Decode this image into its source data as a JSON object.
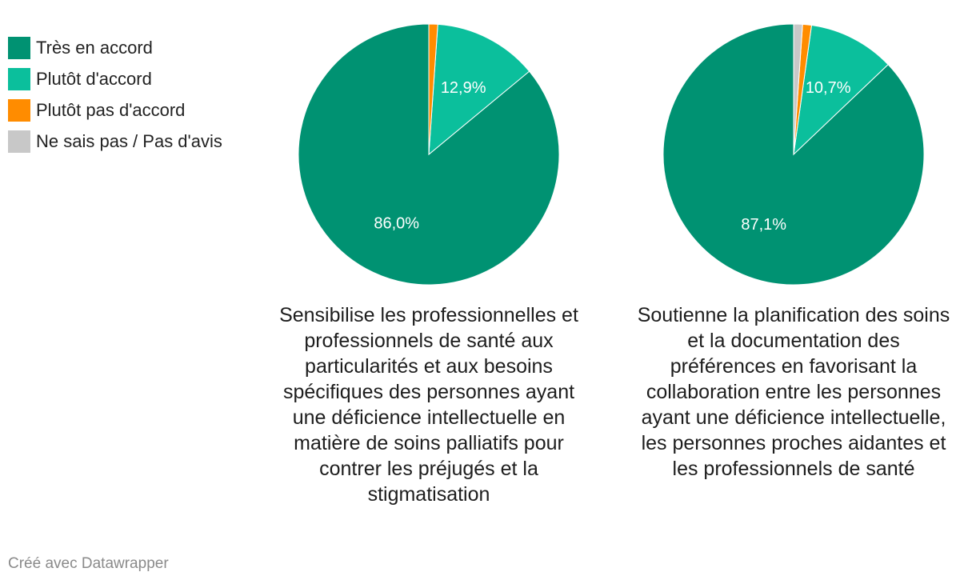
{
  "legend": [
    {
      "label": "Très en accord",
      "color": "#009272"
    },
    {
      "label": "Plutôt d'accord",
      "color": "#0bbf9c"
    },
    {
      "label": "Plutôt pas d'accord",
      "color": "#ff8c00"
    },
    {
      "label": "Ne sais pas / Pas d'avis",
      "color": "#c8c8c8"
    }
  ],
  "chart_data": [
    {
      "type": "pie",
      "title": "Sensibilise les professionnelles et professionnels de santé aux particularités et aux besoins spécifiques des personnes ayant une déficience intellectuelle en matière de soins palliatifs pour contrer les préjugés et la stigmatisation",
      "slices": [
        {
          "name": "Très en accord",
          "value": 86.0,
          "label": "86,0%"
        },
        {
          "name": "Plutôt d'accord",
          "value": 12.9,
          "label": "12,9%"
        },
        {
          "name": "Plutôt pas d'accord",
          "value": 1.1,
          "label": ""
        },
        {
          "name": "Ne sais pas / Pas d'avis",
          "value": 0.0,
          "label": ""
        }
      ]
    },
    {
      "type": "pie",
      "title": "Soutienne la planification des soins et la documentation des préférences en favorisant la collaboration entre les personnes ayant une déficience intellectuelle, les personnes proches aidantes et les professionnels de santé",
      "slices": [
        {
          "name": "Très en accord",
          "value": 87.1,
          "label": "87,1%"
        },
        {
          "name": "Plutôt d'accord",
          "value": 10.7,
          "label": "10,7%"
        },
        {
          "name": "Plutôt pas d'accord",
          "value": 1.1,
          "label": ""
        },
        {
          "name": "Ne sais pas / Pas d'avis",
          "value": 1.1,
          "label": ""
        }
      ]
    }
  ],
  "footer": "Créé avec Datawrapper"
}
